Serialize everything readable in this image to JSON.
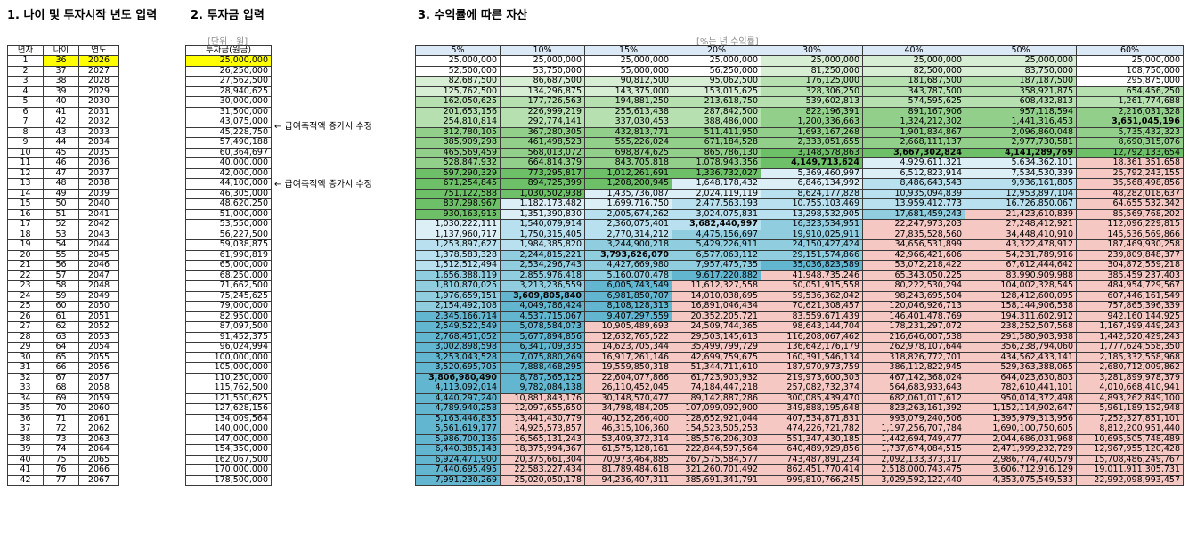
{
  "section_titles": {
    "age_year": "1. 나이 및 투자시작 년도 입력",
    "investment": "2. 투자금 입력",
    "assets": "3. 수익률에 따른 자산"
  },
  "unit_labels": {
    "investment": "[단위 : 원]",
    "returns": "[%는 년 수익률]"
  },
  "notes": {
    "note_row6": "← 급여축적액 증가시 수정",
    "note_row11": "← 급여축적액 증가시 수정"
  },
  "age_table": {
    "headers": [
      "년차",
      "나이",
      "연도"
    ],
    "rows": [
      [
        "1",
        "36",
        "2026"
      ],
      [
        "2",
        "37",
        "2027"
      ],
      [
        "3",
        "38",
        "2028"
      ],
      [
        "4",
        "39",
        "2029"
      ],
      [
        "5",
        "40",
        "2030"
      ],
      [
        "6",
        "41",
        "2031"
      ],
      [
        "7",
        "42",
        "2032"
      ],
      [
        "8",
        "43",
        "2033"
      ],
      [
        "9",
        "44",
        "2034"
      ],
      [
        "10",
        "45",
        "2035"
      ],
      [
        "11",
        "46",
        "2036"
      ],
      [
        "12",
        "47",
        "2037"
      ],
      [
        "13",
        "48",
        "2038"
      ],
      [
        "14",
        "49",
        "2039"
      ],
      [
        "15",
        "50",
        "2040"
      ],
      [
        "16",
        "51",
        "2041"
      ],
      [
        "17",
        "52",
        "2042"
      ],
      [
        "18",
        "53",
        "2043"
      ],
      [
        "19",
        "54",
        "2044"
      ],
      [
        "20",
        "55",
        "2045"
      ],
      [
        "21",
        "56",
        "2046"
      ],
      [
        "22",
        "57",
        "2047"
      ],
      [
        "23",
        "58",
        "2048"
      ],
      [
        "24",
        "59",
        "2049"
      ],
      [
        "25",
        "60",
        "2050"
      ],
      [
        "26",
        "61",
        "2051"
      ],
      [
        "27",
        "62",
        "2052"
      ],
      [
        "28",
        "63",
        "2053"
      ],
      [
        "29",
        "64",
        "2054"
      ],
      [
        "30",
        "65",
        "2055"
      ],
      [
        "31",
        "66",
        "2056"
      ],
      [
        "32",
        "67",
        "2057"
      ],
      [
        "33",
        "68",
        "2058"
      ],
      [
        "34",
        "69",
        "2059"
      ],
      [
        "35",
        "70",
        "2060"
      ],
      [
        "36",
        "71",
        "2061"
      ],
      [
        "37",
        "72",
        "2062"
      ],
      [
        "38",
        "73",
        "2063"
      ],
      [
        "39",
        "74",
        "2064"
      ],
      [
        "40",
        "75",
        "2065"
      ],
      [
        "41",
        "76",
        "2066"
      ],
      [
        "42",
        "77",
        "2067"
      ]
    ]
  },
  "investment_table": {
    "header": "투자금(원금)",
    "values": [
      "25,000,000",
      "26,250,000",
      "27,562,500",
      "28,940,625",
      "30,000,000",
      "31,500,000",
      "43,075,000",
      "45,228,750",
      "57,490,188",
      "60,364,697",
      "40,000,000",
      "42,000,000",
      "44,100,000",
      "46,305,000",
      "48,620,250",
      "51,000,000",
      "53,550,000",
      "56,227,500",
      "59,038,875",
      "61,990,819",
      "65,000,000",
      "68,250,000",
      "71,662,500",
      "75,245,625",
      "79,000,000",
      "82,950,000",
      "87,097,500",
      "91,452,375",
      "96,024,994",
      "100,000,000",
      "105,000,000",
      "110,250,000",
      "115,762,500",
      "121,550,625",
      "127,628,156",
      "134,009,564",
      "140,000,000",
      "147,000,000",
      "154,350,000",
      "162,067,500",
      "170,000,000",
      "178,500,000"
    ]
  },
  "returns_table": {
    "headers": [
      "5%",
      "10%",
      "15%",
      "20%",
      "30%",
      "40%",
      "50%",
      "60%"
    ],
    "rows": [
      [
        "25,000,000",
        "25,000,000",
        "25,000,000",
        "25,000,000",
        "25,000,000",
        "25,000,000",
        "25,000,000",
        "25,000,000"
      ],
      [
        "52,500,000",
        "53,750,000",
        "55,000,000",
        "56,250,000",
        "81,250,000",
        "82,500,000",
        "83,750,000",
        "108,750,000"
      ],
      [
        "82,687,500",
        "86,687,500",
        "90,812,500",
        "95,062,500",
        "176,125,000",
        "181,687,500",
        "187,187,500",
        "295,875,000"
      ],
      [
        "125,762,500",
        "134,296,875",
        "143,375,000",
        "153,015,625",
        "328,306,250",
        "343,787,500",
        "358,921,875",
        "654,456,250"
      ],
      [
        "162,050,625",
        "177,726,563",
        "194,881,250",
        "213,618,750",
        "539,602,813",
        "574,595,625",
        "608,432,813",
        "1,261,774,688"
      ],
      [
        "201,653,156",
        "226,999,219",
        "255,613,438",
        "287,842,500",
        "822,196,391",
        "891,167,906",
        "957,118,594",
        "2,216,031,328"
      ],
      [
        "254,810,814",
        "292,774,141",
        "337,030,453",
        "388,486,000",
        "1,200,336,663",
        "1,324,212,302",
        "1,441,316,453",
        "3,651,045,196"
      ],
      [
        "312,780,105",
        "367,280,305",
        "432,813,771",
        "511,411,950",
        "1,693,167,268",
        "1,901,834,867",
        "2,096,860,048",
        "5,735,432,323"
      ],
      [
        "385,909,298",
        "461,498,523",
        "555,226,024",
        "671,184,528",
        "2,333,051,655",
        "2,668,111,137",
        "2,977,730,581",
        "8,690,315,076"
      ],
      [
        "465,569,459",
        "568,013,072",
        "698,874,625",
        "865,786,130",
        "3,148,578,863",
        "3,667,302,824",
        "4,141,289,769",
        "12,792,133,654"
      ],
      [
        "528,847,932",
        "664,814,379",
        "843,705,818",
        "1,078,943,356",
        "4,149,713,624",
        "4,929,611,321",
        "5,634,362,101",
        "18,361,351,658"
      ],
      [
        "597,290,329",
        "773,295,817",
        "1,012,261,691",
        "1,336,732,027",
        "5,369,460,997",
        "6,512,823,914",
        "7,534,530,339",
        "25,792,243,155"
      ],
      [
        "671,254,845",
        "894,725,399",
        "1,208,200,945",
        "1,648,178,432",
        "6,846,134,992",
        "8,486,643,543",
        "9,936,161,805",
        "35,568,498,856"
      ],
      [
        "751,122,588",
        "1,030,502,938",
        "1,435,736,087",
        "2,024,119,119",
        "8,624,177,828",
        "10,935,094,839",
        "12,953,897,104",
        "48,282,018,637"
      ],
      [
        "837,298,967",
        "1,182,173,482",
        "1,699,716,750",
        "2,477,563,193",
        "10,755,103,469",
        "13,959,412,773",
        "16,726,850,067",
        "64,655,532,342"
      ],
      [
        "930,163,915",
        "1,351,390,830",
        "2,005,674,262",
        "3,024,075,831",
        "13,298,532,905",
        "17,681,459,243",
        "21,423,610,839",
        "85,569,768,202"
      ],
      [
        "1,030,222,111",
        "1,540,079,914",
        "2,360,075,401",
        "3,682,440,997",
        "16,323,534,951",
        "22,247,973,203",
        "27,248,412,921",
        "112,096,229,815"
      ],
      [
        "1,137,960,717",
        "1,750,315,405",
        "2,770,314,212",
        "4,475,156,697",
        "19,910,025,911",
        "27,835,528,560",
        "34,448,410,910",
        "145,536,569,866"
      ],
      [
        "1,253,897,627",
        "1,984,385,820",
        "3,244,900,218",
        "5,429,226,911",
        "24,150,427,424",
        "34,656,531,899",
        "43,322,478,912",
        "187,469,930,258"
      ],
      [
        "1,378,583,328",
        "2,244,815,221",
        "3,793,626,070",
        "6,577,063,112",
        "29,151,574,866",
        "42,966,421,606",
        "54,231,789,916",
        "239,809,848,377"
      ],
      [
        "1,512,512,494",
        "2,534,296,743",
        "4,427,669,980",
        "7,957,475,735",
        "35,036,823,589",
        "53,072,218,422",
        "67,612,444,642",
        "304,872,559,218"
      ],
      [
        "1,656,388,119",
        "2,855,976,418",
        "5,160,070,478",
        "9,617,220,882",
        "41,948,735,246",
        "65,343,050,225",
        "83,990,909,988",
        "385,459,237,403"
      ],
      [
        "1,810,870,025",
        "3,213,236,559",
        "6,005,743,549",
        "11,612,327,558",
        "50,051,915,558",
        "80,222,530,294",
        "104,002,328,545",
        "484,954,729,567"
      ],
      [
        "1,976,659,151",
        "3,609,805,840",
        "6,981,850,707",
        "14,010,038,695",
        "59,536,362,042",
        "98,243,695,504",
        "128,412,600,095",
        "607,446,161,549"
      ],
      [
        "2,154,492,108",
        "4,049,786,424",
        "8,108,128,313",
        "16,891,046,434",
        "70,621,308,457",
        "120,046,926,713",
        "158,144,906,538",
        "757,865,396,339"
      ],
      [
        "2,345,166,714",
        "4,537,715,067",
        "9,407,297,559",
        "20,352,205,721",
        "83,559,671,439",
        "146,401,478,769",
        "194,311,602,912",
        "942,160,144,925"
      ],
      [
        "2,549,522,549",
        "5,078,584,073",
        "10,905,489,693",
        "24,509,744,365",
        "98,643,144,704",
        "178,231,297,072",
        "238,252,507,568",
        "1,167,499,449,243"
      ],
      [
        "2,768,451,052",
        "5,677,894,856",
        "12,632,765,522",
        "29,503,145,613",
        "116,208,067,462",
        "216,646,007,538",
        "291,580,903,938",
        "1,442,520,429,243"
      ],
      [
        "3,002,898,598",
        "6,341,709,335",
        "14,623,705,344",
        "35,499,799,729",
        "136,642,176,179",
        "262,978,107,644",
        "356,238,794,060",
        "1,777,624,558,350"
      ],
      [
        "3,253,043,528",
        "7,075,880,269",
        "16,917,261,146",
        "42,699,759,675",
        "160,391,546,134",
        "318,826,772,701",
        "434,562,433,141",
        "2,185,332,558,968"
      ],
      [
        "3,520,695,705",
        "7,888,468,295",
        "19,559,850,318",
        "51,344,711,610",
        "187,970,973,759",
        "386,112,822,945",
        "529,363,388,065",
        "2,680,712,009,862"
      ],
      [
        "3,806,980,490",
        "8,787,565,125",
        "22,604,077,866",
        "61,723,903,932",
        "219,973,600,303",
        "467,142,368,024",
        "644,023,630,803",
        "3,281,899,978,379"
      ],
      [
        "4,113,092,014",
        "9,782,084,138",
        "26,110,452,045",
        "74,184,447,218",
        "257,082,732,374",
        "564,683,933,643",
        "782,610,441,101",
        "4,010,668,410,941"
      ],
      [
        "4,440,297,240",
        "10,881,843,176",
        "30,148,570,477",
        "89,142,887,286",
        "300,085,439,470",
        "682,061,017,612",
        "950,014,372,498",
        "4,893,262,849,100"
      ],
      [
        "4,789,940,258",
        "12,097,655,650",
        "34,798,484,205",
        "107,099,092,900",
        "349,888,195,648",
        "823,263,161,392",
        "1,152,114,902,647",
        "5,961,189,152,948"
      ],
      [
        "5,163,446,835",
        "13,441,430,779",
        "40,152,266,400",
        "128,652,921,044",
        "407,534,871,831",
        "993,079,240,506",
        "1,395,979,313,956",
        "7,252,327,851,101"
      ],
      [
        "5,561,619,177",
        "14,925,573,857",
        "46,315,106,360",
        "154,523,505,253",
        "474,226,721,782",
        "1,197,256,707,784",
        "1,690,100,750,605",
        "8,812,200,951,440"
      ],
      [
        "5,986,700,136",
        "16,565,131,243",
        "53,409,372,314",
        "185,576,206,303",
        "551,347,430,185",
        "1,442,694,749,477",
        "2,044,686,031,968",
        "10,695,505,748,489"
      ],
      [
        "6,440,385,143",
        "18,375,994,367",
        "61,575,128,161",
        "222,844,597,564",
        "640,489,929,856",
        "1,737,674,084,515",
        "2,471,999,232,729",
        "12,967,955,120,428"
      ],
      [
        "6,924,471,900",
        "20,375,661,304",
        "70,973,464,885",
        "267,575,584,577",
        "743,487,891,234",
        "2,092,133,373,317",
        "2,986,774,740,579",
        "15,708,486,249,767"
      ],
      [
        "7,440,695,495",
        "22,583,227,434",
        "81,789,484,618",
        "321,260,701,492",
        "862,451,770,414",
        "2,518,000,743,475",
        "3,606,712,916,129",
        "19,011,911,305,731"
      ],
      [
        "7,991,230,269",
        "25,020,050,178",
        "94,236,407,311",
        "385,691,341,791",
        "999,810,766,245",
        "3,029,592,122,440",
        "4,353,075,549,533",
        "22,992,098,993,457"
      ]
    ],
    "bold_cells": [
      [
        6,
        7
      ],
      [
        9,
        5
      ],
      [
        9,
        6
      ],
      [
        10,
        4
      ],
      [
        16,
        3
      ],
      [
        19,
        2
      ],
      [
        23,
        1
      ],
      [
        31,
        0
      ]
    ]
  }
}
